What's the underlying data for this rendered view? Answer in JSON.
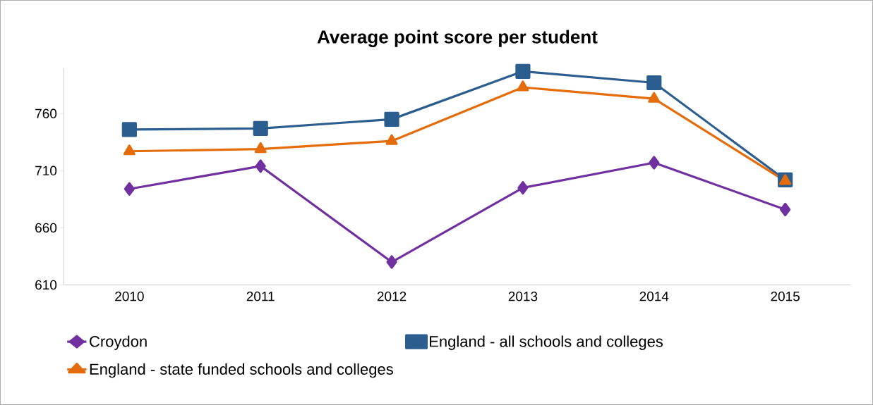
{
  "chart_data": {
    "type": "line",
    "title": "Average point score per student",
    "categories": [
      "2010",
      "2011",
      "2012",
      "2013",
      "2014",
      "2015"
    ],
    "series": [
      {
        "name": "Croydon",
        "color": "#7030a0",
        "marker": "diamond",
        "values": [
          694,
          714,
          630,
          695,
          717,
          676
        ]
      },
      {
        "name": "England - all schools and colleges",
        "color": "#2c5d8f",
        "marker": "square",
        "values": [
          746,
          747,
          755,
          797,
          787,
          702
        ]
      },
      {
        "name": "England - state funded schools and colleges",
        "color": "#e46c0a",
        "marker": "triangle",
        "values": [
          727,
          729,
          736,
          783,
          773,
          701
        ]
      }
    ],
    "ylim": [
      610,
      800
    ],
    "yticks": [
      610,
      660,
      710,
      760
    ],
    "grid": false,
    "legend": "bottom"
  }
}
